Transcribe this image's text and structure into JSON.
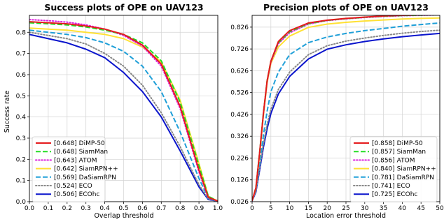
{
  "chart_data": [
    {
      "type": "line",
      "title": "Success plots of OPE on UAV123",
      "xlabel": "Overlap threshold",
      "ylabel": "Success rate",
      "xlim": [
        0,
        1
      ],
      "ylim": [
        0,
        0.88
      ],
      "xticks": [
        0.0,
        0.1,
        0.2,
        0.3,
        0.4,
        0.5,
        0.6,
        0.7,
        0.8,
        0.9,
        1.0
      ],
      "xtick_labels": [
        "0.0",
        "0.1",
        "0.2",
        "0.3",
        "0.4",
        "0.5",
        "0.6",
        "0.7",
        "0.8",
        "0.9",
        "1.0"
      ],
      "yticks": [
        0.0,
        0.1,
        0.2,
        0.3,
        0.4,
        0.5,
        0.6,
        0.7,
        0.8
      ],
      "ytick_labels": [
        "0.0",
        "0.1",
        "0.2",
        "0.3",
        "0.4",
        "0.5",
        "0.6",
        "0.7",
        "0.8"
      ],
      "grid": true,
      "legend_position": "bottom-left",
      "x": [
        0.0,
        0.1,
        0.2,
        0.3,
        0.4,
        0.5,
        0.6,
        0.7,
        0.8,
        0.9,
        0.95,
        1.0
      ],
      "series": [
        {
          "name": "DiMP-50",
          "legend": "[0.648] DiMP-50",
          "color": "#e41a1c",
          "dash": "solid",
          "width": 2,
          "values": [
            0.85,
            0.845,
            0.84,
            0.83,
            0.815,
            0.79,
            0.74,
            0.65,
            0.45,
            0.15,
            0.02,
            0.003
          ]
        },
        {
          "name": "SiamMan",
          "legend": "[0.648] SiamMan",
          "color": "#22dd22",
          "dash": "dashed",
          "width": 2,
          "values": [
            0.845,
            0.84,
            0.835,
            0.825,
            0.81,
            0.79,
            0.75,
            0.665,
            0.47,
            0.17,
            0.025,
            0.003
          ]
        },
        {
          "name": "ATOM",
          "legend": "[0.643] ATOM",
          "color": "#dd22dd",
          "dash": "dotted",
          "width": 2,
          "values": [
            0.86,
            0.855,
            0.848,
            0.835,
            0.815,
            0.785,
            0.735,
            0.64,
            0.44,
            0.14,
            0.018,
            0.003
          ]
        },
        {
          "name": "SiamRPN++",
          "legend": "[0.642] SiamRPN++",
          "color": "#ffe135",
          "dash": "solid",
          "width": 2,
          "values": [
            0.82,
            0.815,
            0.81,
            0.8,
            0.79,
            0.77,
            0.73,
            0.66,
            0.48,
            0.18,
            0.025,
            0.003
          ]
        },
        {
          "name": "DaSiamRPN",
          "legend": "[0.569] DaSiamRPN",
          "color": "#1f9fd8",
          "dash": "dashed",
          "width": 2,
          "values": [
            0.81,
            0.8,
            0.79,
            0.775,
            0.75,
            0.71,
            0.64,
            0.52,
            0.33,
            0.11,
            0.015,
            0.003
          ]
        },
        {
          "name": "ECO",
          "legend": "[0.524] ECO",
          "color": "#888888",
          "dash": "dotted",
          "width": 2,
          "values": [
            0.8,
            0.785,
            0.77,
            0.745,
            0.7,
            0.64,
            0.55,
            0.42,
            0.26,
            0.08,
            0.012,
            0.003
          ]
        },
        {
          "name": "ECOhc",
          "legend": "[0.506] ECOhc",
          "color": "#0a14cc",
          "dash": "solid",
          "width": 2,
          "values": [
            0.79,
            0.77,
            0.75,
            0.72,
            0.68,
            0.61,
            0.52,
            0.4,
            0.24,
            0.07,
            0.01,
            0.003
          ]
        }
      ]
    },
    {
      "type": "line",
      "title": "Precision plots of OPE on UAV123",
      "xlabel": "Location error threshold",
      "ylabel": "",
      "xlim": [
        0,
        50
      ],
      "ylim": [
        0.026,
        0.88
      ],
      "xticks": [
        0,
        5,
        10,
        15,
        20,
        25,
        30,
        35,
        40,
        45,
        50
      ],
      "xtick_labels": [
        "0",
        "5",
        "10",
        "15",
        "20",
        "25",
        "30",
        "35",
        "40",
        "45",
        "50"
      ],
      "yticks": [
        0.026,
        0.126,
        0.226,
        0.326,
        0.426,
        0.526,
        0.626,
        0.726,
        0.826
      ],
      "ytick_labels": [
        "0.026",
        "0.126",
        "0.226",
        "0.326",
        "0.426",
        "0.526",
        "0.626",
        "0.726",
        "0.826"
      ],
      "grid": true,
      "legend_position": "bottom-right",
      "x": [
        0,
        1,
        2,
        3,
        4,
        5,
        7,
        10,
        15,
        20,
        25,
        30,
        35,
        40,
        45,
        50
      ],
      "series": [
        {
          "name": "DiMP-50",
          "legend": "[0.858] DiMP-50",
          "color": "#e41a1c",
          "dash": "solid",
          "width": 2,
          "values": [
            0.03,
            0.09,
            0.25,
            0.43,
            0.58,
            0.67,
            0.76,
            0.81,
            0.845,
            0.858,
            0.866,
            0.872,
            0.877,
            0.88,
            0.882,
            0.884
          ]
        },
        {
          "name": "SiamMan",
          "legend": "[0.857] SiamMan",
          "color": "#22dd22",
          "dash": "dashed",
          "width": 2,
          "values": [
            0.03,
            0.09,
            0.25,
            0.43,
            0.58,
            0.67,
            0.755,
            0.805,
            0.842,
            0.857,
            0.865,
            0.871,
            0.876,
            0.879,
            0.881,
            0.883
          ]
        },
        {
          "name": "ATOM",
          "legend": "[0.856] ATOM",
          "color": "#dd22dd",
          "dash": "dotted",
          "width": 2,
          "values": [
            0.03,
            0.088,
            0.245,
            0.425,
            0.575,
            0.665,
            0.75,
            0.8,
            0.84,
            0.856,
            0.864,
            0.87,
            0.875,
            0.878,
            0.88,
            0.882
          ]
        },
        {
          "name": "SiamRPN++",
          "legend": "[0.840] SiamRPN++",
          "color": "#ffe135",
          "dash": "solid",
          "width": 2,
          "values": [
            0.03,
            0.085,
            0.24,
            0.42,
            0.57,
            0.66,
            0.735,
            0.785,
            0.825,
            0.84,
            0.848,
            0.854,
            0.859,
            0.863,
            0.866,
            0.868
          ]
        },
        {
          "name": "DaSiamRPN",
          "legend": "[0.781] DaSiamRPN",
          "color": "#1f9fd8",
          "dash": "dashed",
          "width": 2,
          "values": [
            0.03,
            0.08,
            0.2,
            0.33,
            0.44,
            0.53,
            0.62,
            0.7,
            0.755,
            0.781,
            0.797,
            0.81,
            0.82,
            0.83,
            0.838,
            0.845
          ]
        },
        {
          "name": "ECO",
          "legend": "[0.741] ECO",
          "color": "#888888",
          "dash": "dotted",
          "width": 2,
          "values": [
            0.03,
            0.075,
            0.18,
            0.29,
            0.38,
            0.45,
            0.54,
            0.62,
            0.7,
            0.741,
            0.762,
            0.776,
            0.788,
            0.798,
            0.806,
            0.812
          ]
        },
        {
          "name": "ECOhc",
          "legend": "[0.725] ECOhc",
          "color": "#0a14cc",
          "dash": "solid",
          "width": 2,
          "values": [
            0.03,
            0.07,
            0.17,
            0.275,
            0.36,
            0.43,
            0.52,
            0.6,
            0.68,
            0.725,
            0.745,
            0.76,
            0.772,
            0.782,
            0.79,
            0.797
          ]
        }
      ]
    }
  ]
}
